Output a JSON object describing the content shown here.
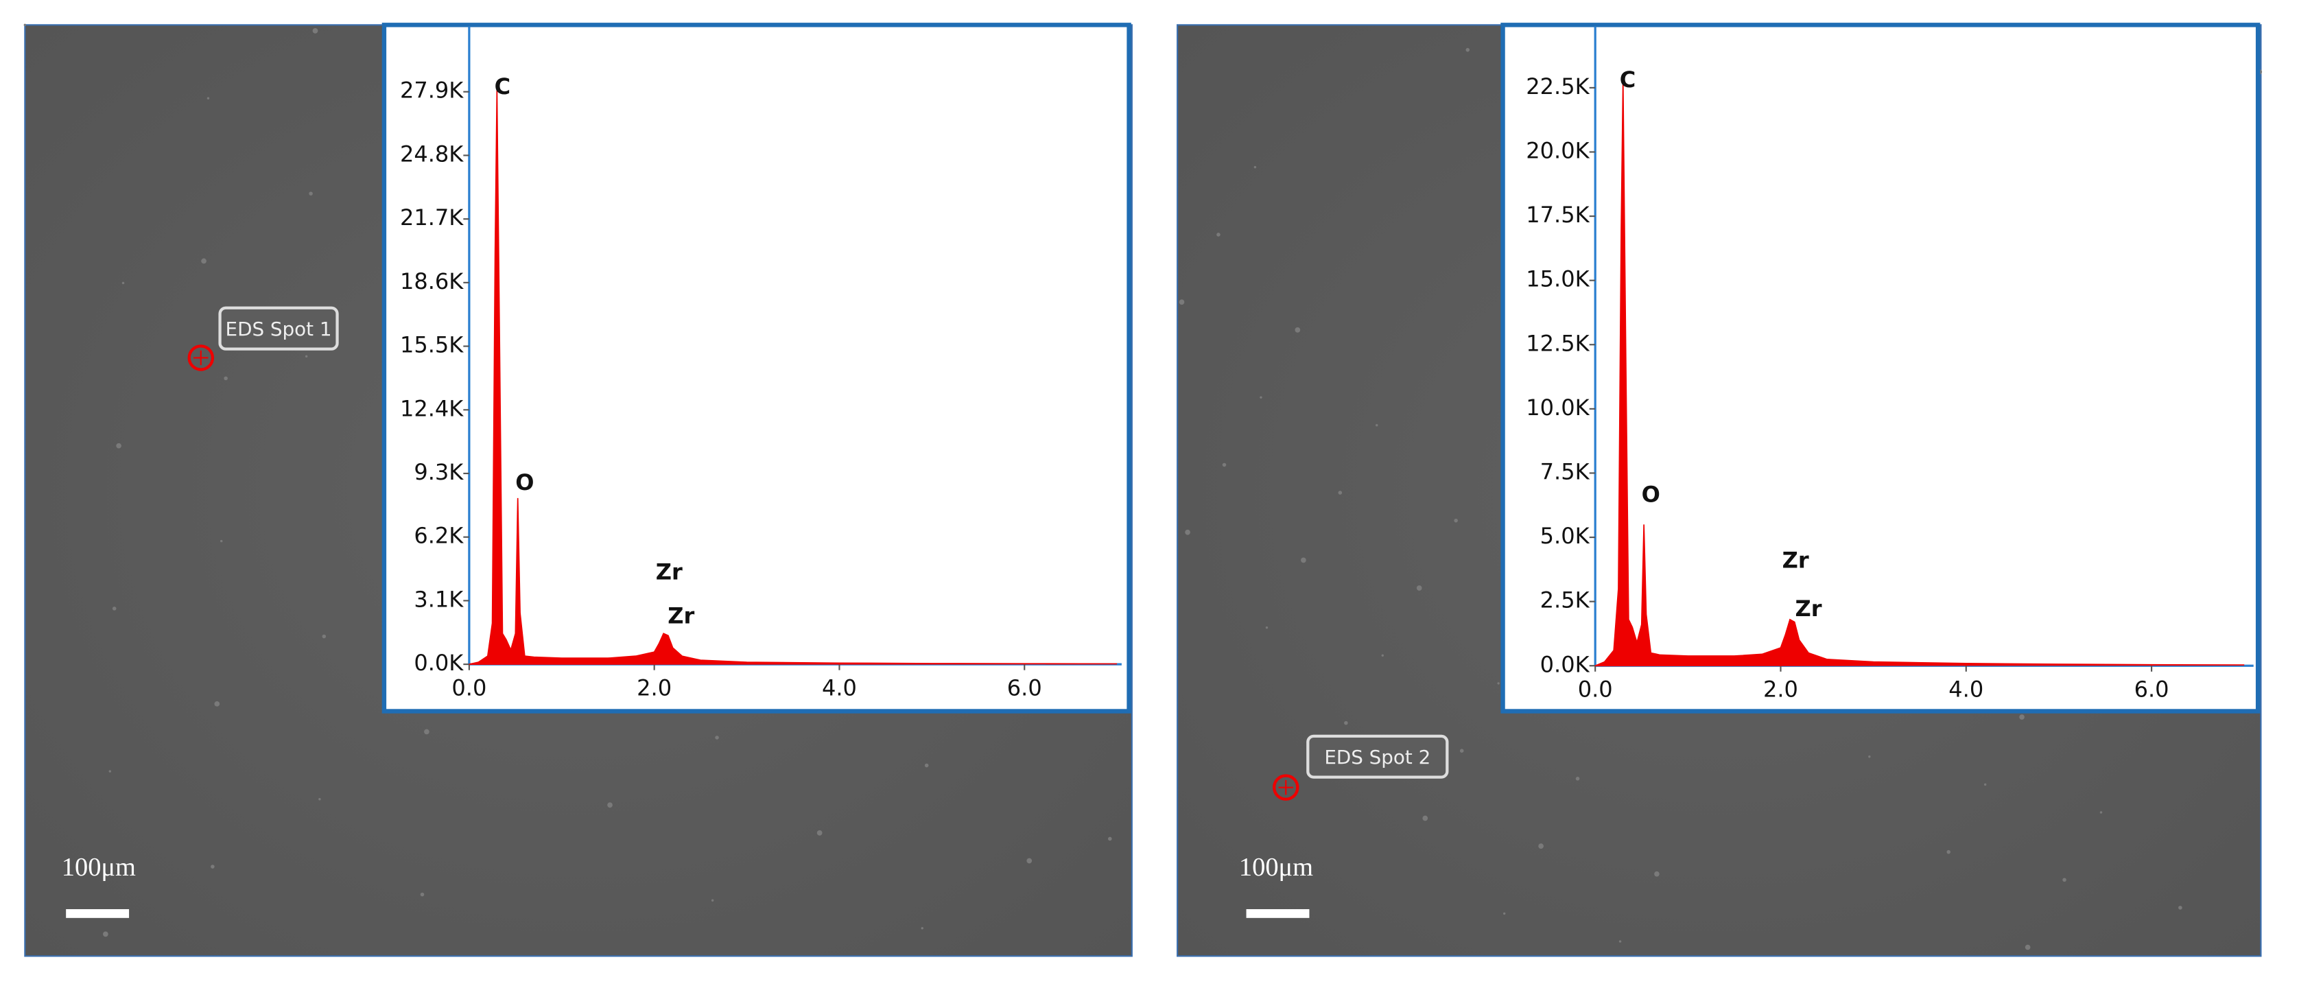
{
  "chart_data": [
    {
      "type": "area",
      "color": "#ee0000",
      "spot_label": "EDS Spot 1",
      "scale_label": "100μm",
      "x": [
        0,
        0.1,
        0.2,
        0.25,
        0.28,
        0.3,
        0.33,
        0.36,
        0.4,
        0.45,
        0.5,
        0.525,
        0.55,
        0.6,
        0.7,
        1.0,
        1.5,
        1.8,
        2.0,
        2.05,
        2.1,
        2.15,
        2.2,
        2.3,
        2.5,
        3.0,
        4.0,
        5.0,
        6.0,
        7.0
      ],
      "values": [
        0,
        100,
        400,
        2000,
        20000,
        28000,
        15000,
        1500,
        1200,
        700,
        1500,
        8100,
        2500,
        400,
        350,
        300,
        300,
        400,
        600,
        1000,
        1500,
        1400,
        800,
        400,
        200,
        100,
        60,
        40,
        30,
        20
      ],
      "xlim": [
        0,
        7.05
      ],
      "ylim": [
        0,
        30800
      ],
      "xticks": [
        {
          "value": 0,
          "label": "0.0"
        },
        {
          "value": 2,
          "label": "2.0"
        },
        {
          "value": 4,
          "label": "4.0"
        },
        {
          "value": 6,
          "label": "6.0"
        }
      ],
      "yticks": [
        {
          "value": 0,
          "label": "0.0K"
        },
        {
          "value": 3100,
          "label": "3.1K"
        },
        {
          "value": 6200,
          "label": "6.2K"
        },
        {
          "value": 9300,
          "label": "9.3K"
        },
        {
          "value": 12400,
          "label": "12.4K"
        },
        {
          "value": 15500,
          "label": "15.5K"
        },
        {
          "value": 18600,
          "label": "18.6K"
        },
        {
          "value": 21700,
          "label": "21.7K"
        },
        {
          "value": 24800,
          "label": "24.8K"
        },
        {
          "value": 27900,
          "label": "27.9K"
        }
      ],
      "annotations": [
        {
          "text": "C",
          "x": 0.36,
          "y": 28100
        },
        {
          "text": "O",
          "x": 0.6,
          "y": 8800
        },
        {
          "text": "Zr",
          "x": 2.16,
          "y": 4430
        },
        {
          "text": "Zr",
          "x": 2.29,
          "y": 2290
        }
      ]
    },
    {
      "type": "area",
      "color": "#ee0000",
      "spot_label": "EDS Spot 2",
      "scale_label": "100μm",
      "x": [
        0,
        0.1,
        0.2,
        0.25,
        0.28,
        0.3,
        0.33,
        0.36,
        0.4,
        0.45,
        0.5,
        0.525,
        0.55,
        0.6,
        0.7,
        1.0,
        1.5,
        1.8,
        2.0,
        2.05,
        2.1,
        2.15,
        2.2,
        2.3,
        2.5,
        3.0,
        4.0,
        5.0,
        6.0,
        7.0
      ],
      "values": [
        0,
        150,
        600,
        3000,
        17000,
        22800,
        12000,
        1800,
        1500,
        900,
        1600,
        5500,
        2000,
        500,
        420,
        380,
        380,
        450,
        700,
        1200,
        1800,
        1700,
        1000,
        500,
        250,
        150,
        90,
        60,
        40,
        30
      ],
      "xlim": [
        0,
        7.1
      ],
      "ylim": [
        0,
        24660
      ],
      "xticks": [
        {
          "value": 0,
          "label": "0.0"
        },
        {
          "value": 2,
          "label": "2.0"
        },
        {
          "value": 4,
          "label": "4.0"
        },
        {
          "value": 6,
          "label": "6.0"
        }
      ],
      "yticks": [
        {
          "value": 0,
          "label": "0.0K"
        },
        {
          "value": 2500,
          "label": "2.5K"
        },
        {
          "value": 5000,
          "label": "5.0K"
        },
        {
          "value": 7500,
          "label": "7.5K"
        },
        {
          "value": 10000,
          "label": "10.0K"
        },
        {
          "value": 12500,
          "label": "12.5K"
        },
        {
          "value": 15000,
          "label": "15.0K"
        },
        {
          "value": 17500,
          "label": "17.5K"
        },
        {
          "value": 20000,
          "label": "20.0K"
        },
        {
          "value": 22500,
          "label": "22.5K"
        }
      ],
      "annotations": [
        {
          "text": "C",
          "x": 0.35,
          "y": 22770
        },
        {
          "text": "O",
          "x": 0.6,
          "y": 6620
        },
        {
          "text": "Zr",
          "x": 2.16,
          "y": 4050
        },
        {
          "text": "Zr",
          "x": 2.3,
          "y": 2170
        }
      ]
    }
  ]
}
